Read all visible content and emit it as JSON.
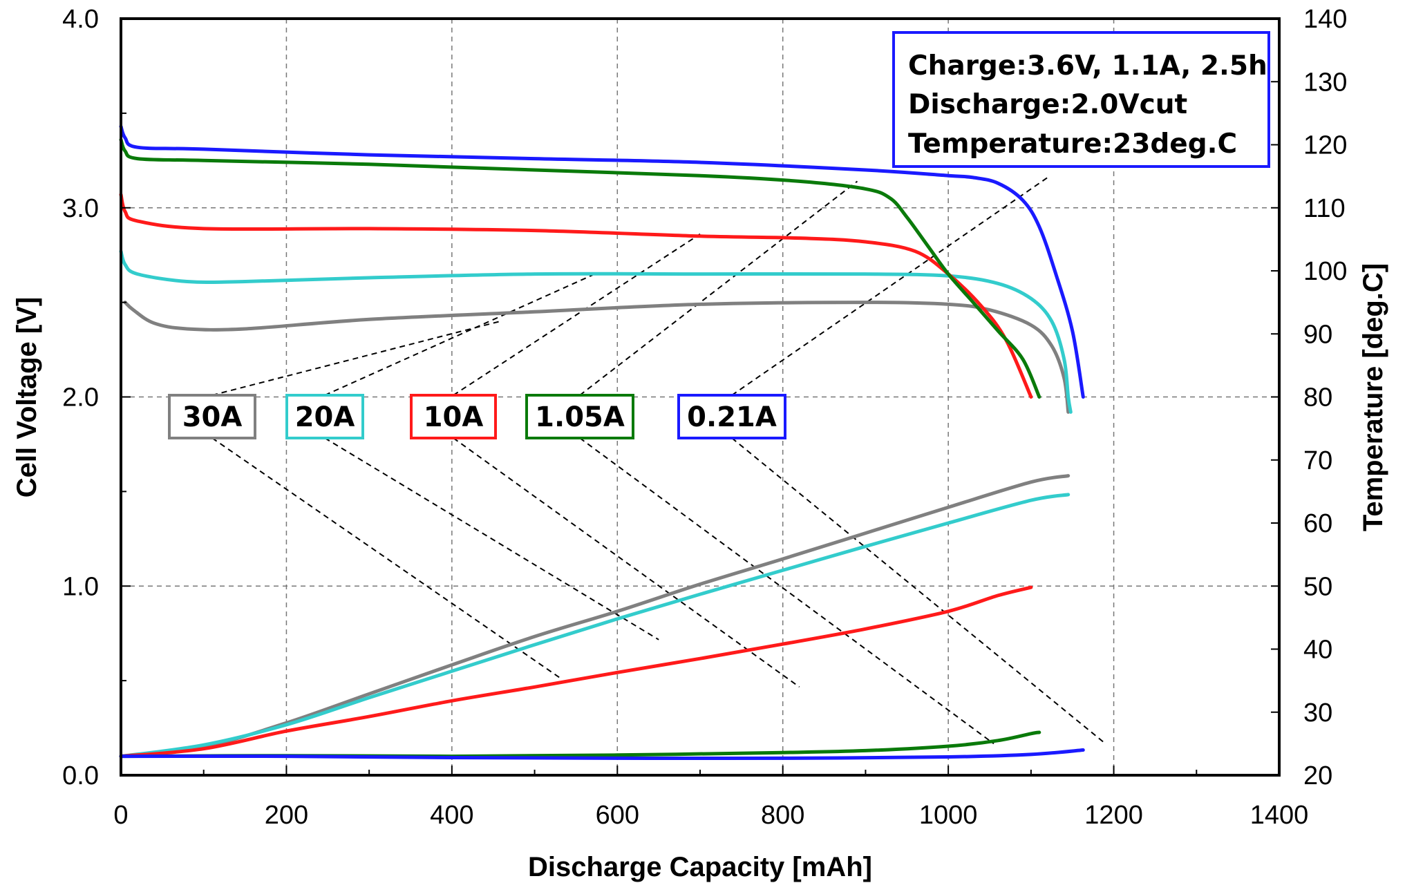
{
  "chart_data": {
    "type": "line",
    "title": "",
    "xlabel": "Discharge Capacity [mAh]",
    "ylabel": "Cell Voltage [V]",
    "y2label": "Temperature [deg.C]",
    "xlim": [
      0,
      1400
    ],
    "ylim": [
      0,
      4.0
    ],
    "y2lim": [
      20,
      140
    ],
    "x_ticks": [
      "0",
      "200",
      "400",
      "600",
      "800",
      "1000",
      "1200",
      "1400"
    ],
    "y_ticks": [
      "0.0",
      "1.0",
      "2.0",
      "3.0",
      "4.0"
    ],
    "y2_ticks": [
      "20",
      "30",
      "40",
      "50",
      "60",
      "70",
      "80",
      "90",
      "100",
      "110",
      "120",
      "130",
      "140"
    ],
    "grid": true,
    "conditions": [
      "Charge:3.6V, 1.1A, 2.5h",
      "Discharge:2.0Vcut",
      "Temperature:23deg.C"
    ],
    "colors": {
      "0.21A": "#1a1aff",
      "1.05A": "#0a7a0a",
      "10A": "#ff1a1a",
      "20A": "#33cccc",
      "30A": "#808080"
    },
    "series": [
      {
        "name": "0.21A",
        "voltage": [
          [
            0,
            3.43
          ],
          [
            5,
            3.37
          ],
          [
            20,
            3.32
          ],
          [
            100,
            3.31
          ],
          [
            300,
            3.28
          ],
          [
            500,
            3.26
          ],
          [
            700,
            3.24
          ],
          [
            900,
            3.2
          ],
          [
            1000,
            3.17
          ],
          [
            1030,
            3.16
          ],
          [
            1060,
            3.13
          ],
          [
            1090,
            3.04
          ],
          [
            1110,
            2.9
          ],
          [
            1130,
            2.65
          ],
          [
            1150,
            2.35
          ],
          [
            1163,
            2.0
          ]
        ],
        "temperature": [
          [
            0,
            23.0
          ],
          [
            200,
            23.0
          ],
          [
            400,
            22.8
          ],
          [
            600,
            22.7
          ],
          [
            800,
            22.7
          ],
          [
            1000,
            22.9
          ],
          [
            1100,
            23.3
          ],
          [
            1163,
            24.0
          ]
        ]
      },
      {
        "name": "1.05A",
        "voltage": [
          [
            0,
            3.36
          ],
          [
            5,
            3.3
          ],
          [
            20,
            3.26
          ],
          [
            100,
            3.25
          ],
          [
            300,
            3.23
          ],
          [
            500,
            3.2
          ],
          [
            700,
            3.17
          ],
          [
            820,
            3.14
          ],
          [
            900,
            3.1
          ],
          [
            930,
            3.05
          ],
          [
            950,
            2.95
          ],
          [
            975,
            2.8
          ],
          [
            1000,
            2.65
          ],
          [
            1030,
            2.5
          ],
          [
            1060,
            2.35
          ],
          [
            1090,
            2.2
          ],
          [
            1110,
            2.0
          ]
        ],
        "temperature": [
          [
            0,
            23.0
          ],
          [
            200,
            23.1
          ],
          [
            400,
            23.0
          ],
          [
            600,
            23.2
          ],
          [
            800,
            23.6
          ],
          [
            900,
            23.9
          ],
          [
            1000,
            24.6
          ],
          [
            1060,
            25.5
          ],
          [
            1100,
            26.6
          ],
          [
            1110,
            26.8
          ]
        ]
      },
      {
        "name": "10A",
        "voltage": [
          [
            0,
            3.07
          ],
          [
            5,
            2.98
          ],
          [
            20,
            2.93
          ],
          [
            100,
            2.89
          ],
          [
            300,
            2.89
          ],
          [
            500,
            2.88
          ],
          [
            700,
            2.85
          ],
          [
            820,
            2.84
          ],
          [
            900,
            2.82
          ],
          [
            960,
            2.77
          ],
          [
            1000,
            2.65
          ],
          [
            1040,
            2.48
          ],
          [
            1070,
            2.3
          ],
          [
            1100,
            2.0
          ]
        ],
        "temperature": [
          [
            0,
            23.0
          ],
          [
            100,
            24.2
          ],
          [
            200,
            27.0
          ],
          [
            300,
            29.3
          ],
          [
            400,
            31.8
          ],
          [
            500,
            34.0
          ],
          [
            600,
            36.3
          ],
          [
            700,
            38.5
          ],
          [
            800,
            40.8
          ],
          [
            900,
            43.2
          ],
          [
            1000,
            46.0
          ],
          [
            1060,
            48.5
          ],
          [
            1100,
            49.8
          ]
        ]
      },
      {
        "name": "20A",
        "voltage": [
          [
            0,
            2.77
          ],
          [
            5,
            2.7
          ],
          [
            20,
            2.65
          ],
          [
            80,
            2.61
          ],
          [
            150,
            2.61
          ],
          [
            300,
            2.63
          ],
          [
            500,
            2.65
          ],
          [
            700,
            2.65
          ],
          [
            900,
            2.65
          ],
          [
            1000,
            2.64
          ],
          [
            1060,
            2.6
          ],
          [
            1100,
            2.52
          ],
          [
            1125,
            2.4
          ],
          [
            1140,
            2.2
          ],
          [
            1145,
            2.0
          ],
          [
            1148,
            1.92
          ]
        ],
        "temperature": [
          [
            0,
            23.0
          ],
          [
            100,
            24.8
          ],
          [
            200,
            28.0
          ],
          [
            300,
            32.3
          ],
          [
            400,
            36.5
          ],
          [
            500,
            40.7
          ],
          [
            600,
            44.8
          ],
          [
            700,
            48.7
          ],
          [
            800,
            52.5
          ],
          [
            900,
            56.3
          ],
          [
            1000,
            60.0
          ],
          [
            1100,
            63.6
          ],
          [
            1145,
            64.5
          ]
        ]
      },
      {
        "name": "30A",
        "voltage": [
          [
            5,
            2.5
          ],
          [
            15,
            2.46
          ],
          [
            40,
            2.39
          ],
          [
            80,
            2.36
          ],
          [
            150,
            2.36
          ],
          [
            300,
            2.41
          ],
          [
            500,
            2.45
          ],
          [
            700,
            2.49
          ],
          [
            900,
            2.5
          ],
          [
            1000,
            2.49
          ],
          [
            1050,
            2.46
          ],
          [
            1100,
            2.38
          ],
          [
            1125,
            2.27
          ],
          [
            1140,
            2.1
          ],
          [
            1145,
            1.92
          ]
        ],
        "temperature": [
          [
            0,
            23.0
          ],
          [
            100,
            24.5
          ],
          [
            200,
            28.3
          ],
          [
            300,
            32.9
          ],
          [
            400,
            37.5
          ],
          [
            500,
            42.0
          ],
          [
            600,
            46.0
          ],
          [
            700,
            50.3
          ],
          [
            800,
            54.3
          ],
          [
            900,
            58.4
          ],
          [
            1000,
            62.5
          ],
          [
            1100,
            66.5
          ],
          [
            1145,
            67.5
          ]
        ]
      }
    ],
    "legend_labels": [
      "30A",
      "20A",
      "10A",
      "1.05A",
      "0.21A"
    ]
  }
}
